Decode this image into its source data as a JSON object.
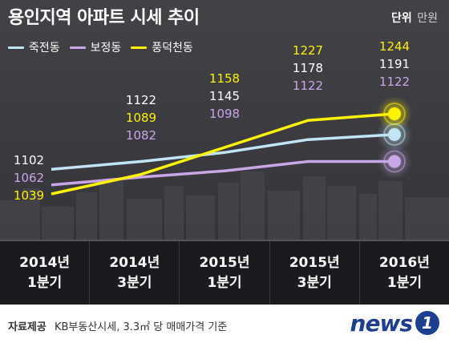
{
  "title": "용인지역 아파트 시세 추이",
  "unit": {
    "key": "단위",
    "value": "만원"
  },
  "colors": {
    "jukjeon": "#bfe5f7",
    "bojeong": "#c9a6e6",
    "pungdeokcheon": "#fff200",
    "label_jukjeon": "#ffffff",
    "label_bojeong": "#c9a6e6",
    "label_pungdeokcheon": "#fff200"
  },
  "chart_data": {
    "type": "line",
    "categories": [
      [
        "2014년",
        "1분기"
      ],
      [
        "2014년",
        "3분기"
      ],
      [
        "2015년",
        "1분기"
      ],
      [
        "2015년",
        "3분기"
      ],
      [
        "2016년",
        "1분기"
      ]
    ],
    "series": [
      {
        "name": "죽전동",
        "key": "jukjeon",
        "values": [
          1102,
          1122,
          1145,
          1178,
          1191
        ]
      },
      {
        "name": "보정동",
        "key": "bojeong",
        "values": [
          1062,
          1082,
          1098,
          1122,
          1122
        ]
      },
      {
        "name": "풍덕천동",
        "key": "pungdeokcheon",
        "values": [
          1039,
          1089,
          1158,
          1227,
          1244
        ]
      }
    ],
    "title": "용인지역 아파트 시세 추이",
    "xlabel": "",
    "ylabel": "",
    "legend": "top-left",
    "grid": false,
    "label_groups": [
      {
        "index": 0,
        "order": [
          "jukjeon",
          "bojeong",
          "pungdeokcheon"
        ],
        "texts": [
          "1102",
          "1062",
          "1039"
        ]
      },
      {
        "index": 1,
        "order": [
          "jukjeon",
          "pungdeokcheon",
          "bojeong"
        ],
        "texts": [
          "1122",
          "1089",
          "1082"
        ]
      },
      {
        "index": 2,
        "order": [
          "pungdeokcheon",
          "jukjeon",
          "bojeong"
        ],
        "texts": [
          "1158",
          "1145",
          "1098"
        ]
      },
      {
        "index": 3,
        "order": [
          "pungdeokcheon",
          "jukjeon",
          "bojeong"
        ],
        "texts": [
          "1227",
          "1178",
          "1122"
        ]
      },
      {
        "index": 4,
        "order": [
          "pungdeokcheon",
          "jukjeon",
          "bojeong"
        ],
        "texts": [
          "1244",
          "1191",
          "1122"
        ]
      }
    ]
  },
  "footer": {
    "source_key": "자료제공",
    "source_text": "KB부동산시세, 3.3㎡ 당 매매가격 기준"
  },
  "logo": {
    "text": "news",
    "badge": "1"
  }
}
